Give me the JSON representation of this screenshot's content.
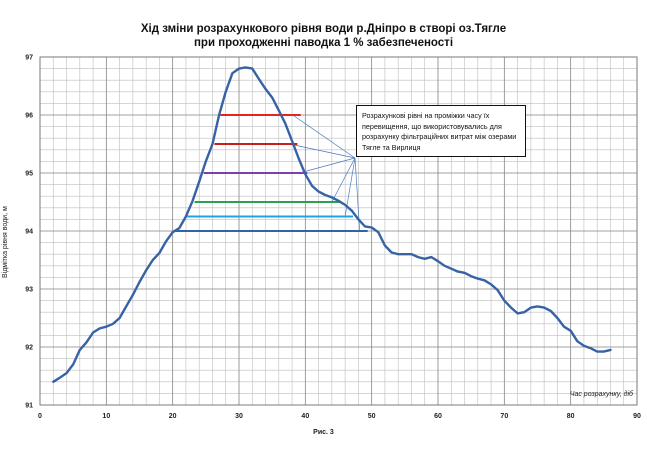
{
  "chart_data": {
    "type": "line",
    "title": "Хід зміни розрахункового рівня води р.Дніпро в створі оз.Тягле",
    "subtitle": "при проходженні паводка 1 % забезпеченості",
    "xlabel": "Час розрахунку, діб",
    "ylabel": "Відмітка рівня води, м",
    "caption": "Рис. 3",
    "annotation": "Розрахункові рівні на проміжки часу їх перевищення, що використовувались для розрахунку фільтраційних витрат між озерами Тягле та Вирлиця",
    "xlim": [
      0,
      90
    ],
    "ylim": [
      91,
      97
    ],
    "x_ticks": [
      0,
      10,
      20,
      30,
      40,
      50,
      60,
      70,
      80,
      90
    ],
    "y_ticks": [
      91,
      92,
      93,
      94,
      95,
      96,
      97
    ],
    "grid": true,
    "series": [
      {
        "color": "#3763a4",
        "x": [
          2,
          3,
          4,
          5,
          6,
          7,
          8,
          9,
          10,
          11,
          12,
          13,
          14,
          15,
          16,
          17,
          18,
          19,
          20,
          21,
          22,
          23,
          24,
          25,
          26,
          27,
          28,
          29,
          30,
          31,
          32,
          33,
          34,
          35,
          36,
          37,
          38,
          39,
          40,
          41,
          42,
          43,
          44,
          45,
          46,
          47,
          48,
          49,
          50,
          51,
          52,
          53,
          54,
          55,
          56,
          57,
          58,
          59,
          60,
          61,
          62,
          63,
          64,
          65,
          66,
          67,
          68,
          69,
          70,
          71,
          72,
          73,
          74,
          75,
          76,
          77,
          78,
          79,
          80,
          81,
          82,
          83,
          84,
          85,
          86
        ],
        "y": [
          91.4,
          91.47,
          91.55,
          91.7,
          91.95,
          92.08,
          92.25,
          92.32,
          92.35,
          92.4,
          92.5,
          92.7,
          92.9,
          93.12,
          93.32,
          93.5,
          93.62,
          93.82,
          93.98,
          94.05,
          94.25,
          94.52,
          94.85,
          95.2,
          95.5,
          96.0,
          96.4,
          96.72,
          96.8,
          96.82,
          96.8,
          96.62,
          96.45,
          96.3,
          96.08,
          95.85,
          95.55,
          95.25,
          94.98,
          94.78,
          94.68,
          94.62,
          94.58,
          94.52,
          94.45,
          94.35,
          94.2,
          94.08,
          94.06,
          93.98,
          93.75,
          93.63,
          93.6,
          93.6,
          93.6,
          93.55,
          93.52,
          93.55,
          93.48,
          93.4,
          93.35,
          93.3,
          93.28,
          93.22,
          93.18,
          93.15,
          93.08,
          92.98,
          92.8,
          92.68,
          92.58,
          92.6,
          92.68,
          92.7,
          92.68,
          92.62,
          92.5,
          92.35,
          92.28,
          92.1,
          92.02,
          91.98,
          91.92,
          91.92,
          91.95
        ]
      }
    ],
    "levels": [
      {
        "y": 96.0,
        "x": [
          27.2,
          39.3
        ],
        "color": "#e8231f"
      },
      {
        "y": 95.5,
        "x": [
          26.3,
          38.8
        ],
        "color": "#c91d1a"
      },
      {
        "y": 95.0,
        "x": [
          24.7,
          40.3
        ],
        "color": "#7a3fb4"
      },
      {
        "y": 94.5,
        "x": [
          23.3,
          45.2
        ],
        "color": "#27a34d"
      },
      {
        "y": 94.25,
        "x": [
          22.2,
          47.2
        ],
        "color": "#1fa3e6"
      },
      {
        "y": 94.0,
        "x": [
          20.4,
          49.4
        ],
        "color": "#2f64a6"
      }
    ]
  }
}
